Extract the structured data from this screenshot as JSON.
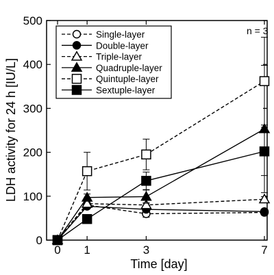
{
  "chart_data": {
    "type": "line",
    "title": "",
    "xlabel": "Time [day]",
    "ylabel": "LDH activity for 24 h [IU/L]",
    "xlim": [
      0,
      7
    ],
    "ylim": [
      0,
      500
    ],
    "x_ticks": [
      0,
      1,
      3,
      7
    ],
    "y_ticks": [
      0,
      100,
      200,
      300,
      400,
      500
    ],
    "annotation": "n = 3",
    "legend_position": "top-left",
    "x": [
      0,
      1,
      3,
      7
    ],
    "series": [
      {
        "name": "Single-layer",
        "values": [
          0,
          80,
          60,
          63
        ],
        "errors": [
          0,
          5,
          8,
          6
        ],
        "marker": "open-circle",
        "line": "dashed"
      },
      {
        "name": "Double-layer",
        "values": [
          0,
          77,
          70,
          65
        ],
        "errors": [
          0,
          5,
          6,
          5
        ],
        "marker": "filled-circle",
        "line": "solid"
      },
      {
        "name": "Triple-layer",
        "values": [
          0,
          83,
          80,
          93
        ],
        "errors": [
          0,
          5,
          5,
          6
        ],
        "marker": "open-triangle",
        "line": "dashed"
      },
      {
        "name": "Quadruple-layer",
        "values": [
          0,
          97,
          99,
          253
        ],
        "errors": [
          0,
          8,
          15,
          145
        ],
        "marker": "filled-triangle",
        "line": "solid"
      },
      {
        "name": "Quintuple-layer",
        "values": [
          0,
          157,
          195,
          362
        ],
        "errors": [
          0,
          43,
          35,
          100
        ],
        "marker": "open-square",
        "line": "dashed"
      },
      {
        "name": "Sextuple-layer",
        "values": [
          0,
          48,
          135,
          202
        ],
        "errors": [
          0,
          8,
          20,
          55
        ],
        "marker": "filled-square",
        "line": "solid"
      }
    ]
  }
}
